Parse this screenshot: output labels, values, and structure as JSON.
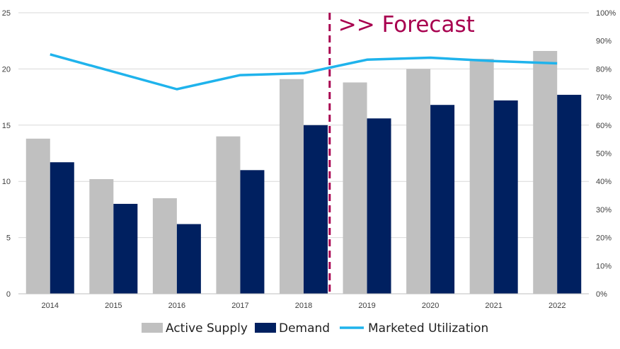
{
  "chart_data": {
    "type": "bar",
    "categories": [
      "2014",
      "2015",
      "2016",
      "2017",
      "2018",
      "2019",
      "2020",
      "2021",
      "2022"
    ],
    "series": [
      {
        "name": "Active Supply",
        "kind": "bar",
        "axis": "left",
        "color": "#c0c0c0",
        "values": [
          13.8,
          10.2,
          8.5,
          14.0,
          19.1,
          18.8,
          20.0,
          20.9,
          21.6
        ]
      },
      {
        "name": "Demand",
        "kind": "bar",
        "axis": "left",
        "color": "#002060",
        "values": [
          11.7,
          8.0,
          6.2,
          11.0,
          15.0,
          15.6,
          16.8,
          17.2,
          17.7
        ]
      },
      {
        "name": "Marketed Utilization",
        "kind": "line",
        "axis": "right",
        "color": "#1fb3ec",
        "values": [
          85.2,
          null,
          72.8,
          77.8,
          78.5,
          83.3,
          84.0,
          82.8,
          82.0
        ]
      }
    ],
    "y_left": {
      "min": 0,
      "max": 25,
      "step": 5,
      "ticks": [
        "0",
        "5",
        "10",
        "15",
        "20",
        "25"
      ]
    },
    "y_right": {
      "min": 0,
      "max": 100,
      "step": 10,
      "ticks": [
        "0%",
        "10%",
        "20%",
        "30%",
        "40%",
        "50%",
        "60%",
        "70%",
        "80%",
        "90%",
        "100%"
      ]
    },
    "annotation": {
      "text": ">> Forecast",
      "color": "#a8004f",
      "after_category": "2018"
    },
    "legend": {
      "placement": "bottom",
      "entries": [
        "Active Supply",
        "Demand",
        "Marketed Utilization"
      ]
    },
    "grid": true,
    "title": "",
    "xlabel": "",
    "ylabel": ""
  }
}
